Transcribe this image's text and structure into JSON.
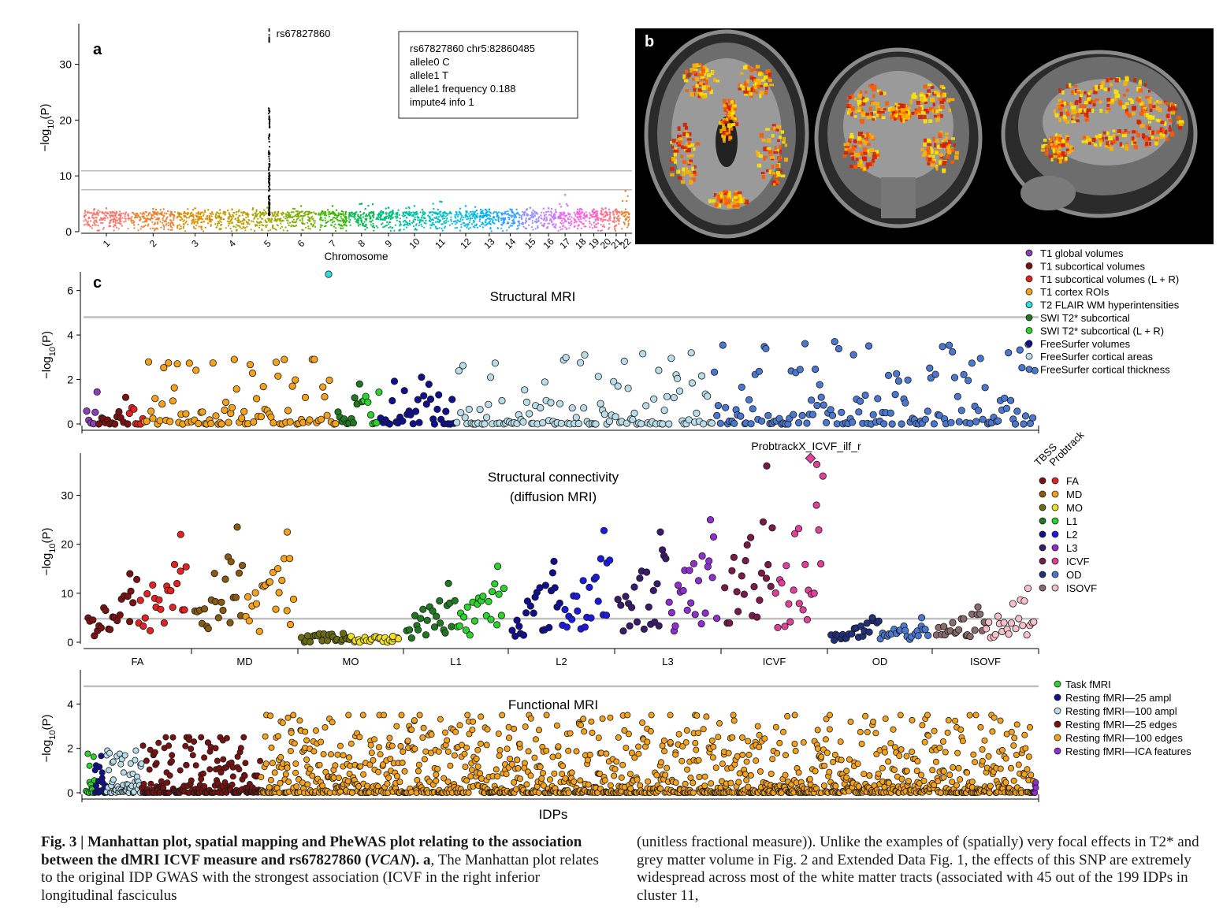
{
  "figure": {
    "panel_labels": [
      "a",
      "b",
      "c"
    ],
    "brain_colors": {
      "background": "#000000",
      "hot": [
        "#ffe600",
        "#ffb000",
        "#ff5a00",
        "#d81e00"
      ]
    }
  },
  "caption": {
    "left_lead": "Fig. 3 | Manhattan plot, spatial mapping and PheWAS plot relating to the association between the dMRI ICVF measure and rs67827860 (",
    "left_gene": "VCAN",
    "left_lead_end": ").",
    "left_panel": " a",
    "left_body": ", The Manhattan plot relates to the original IDP GWAS with the strongest association (ICVF in the right inferior longitudinal fasciculus",
    "right_body": "(unitless fractional measure)). Unlike the examples of (spatially) very focal effects in T2* and grey matter volume in Fig. 2 and Extended Data Fig. 1, the effects of this SNP are extremely widespread across most of the white matter tracts (associated with 45 out of the 199 IDPs in cluster 11,"
  },
  "chart_data": [
    {
      "type": "scatter",
      "panel": "a",
      "name": "manhattan",
      "xlabel": "Chromosome",
      "ylabel": "−log10(P)",
      "ylim": [
        0,
        37
      ],
      "yticks": [
        0,
        10,
        20,
        30
      ],
      "thresholds": [
        7.5,
        10.9
      ],
      "categories": [
        "1",
        "2",
        "3",
        "4",
        "5",
        "6",
        "7",
        "8",
        "9",
        "10",
        "11",
        "12",
        "13",
        "14",
        "15",
        "16",
        "17",
        "18",
        "19",
        "20",
        "21",
        "22"
      ],
      "category_colors": [
        "#f8766d",
        "#ea8331",
        "#d89000",
        "#c09b00",
        "#a3a500",
        "#7cae00",
        "#39b600",
        "#00bb4e",
        "#00bf7d",
        "#00c1a3",
        "#00bfc4",
        "#00bae0",
        "#00b0f6",
        "#35a2ff",
        "#9590ff",
        "#c77cff",
        "#e76bf3",
        "#fa62db",
        "#ff62bc",
        "#ff6c91",
        "#f8766d",
        "#ea8331"
      ],
      "background_max": [
        4.2,
        4.1,
        4.2,
        4.0,
        4.3,
        4.6,
        4.6,
        5.0,
        4.3,
        4.6,
        5.4,
        4.6,
        4.0,
        4.0,
        4.3,
        4.2,
        6.6,
        4.1,
        4.0,
        4.2,
        4.0,
        7.3
      ],
      "peak": {
        "chromosome": "5",
        "snp": "rs67827860",
        "max": 36.3,
        "bulk_top": 22.5
      },
      "annotation_lines": [
        "rs67827860 chr5:82860485",
        "allele0 C",
        "allele1 T",
        "allele1 frequency 0.188",
        "impute4 info 1"
      ],
      "peak_label": "rs67827860"
    },
    {
      "type": "scatter",
      "panel": "c",
      "name": "structural-mri",
      "title": "Structural MRI",
      "ylabel": "−log10(P)",
      "ylim": [
        0,
        6.2
      ],
      "yticks": [
        0,
        2,
        4,
        6
      ],
      "threshold": 4.8,
      "outlier": {
        "group": "T2 FLAIR WM hyperintensities",
        "value": 6.5
      },
      "legend": [
        {
          "name": "T1 global volumes",
          "color": "#8b3fb8"
        },
        {
          "name": "T1 subcortical volumes",
          "color": "#7a1212"
        },
        {
          "name": "T1 subcortical volumes (L + R)",
          "color": "#e52222"
        },
        {
          "name": "T1 cortex ROIs",
          "color": "#f5a21a"
        },
        {
          "name": "T2 FLAIR WM hyperintensities",
          "color": "#2fe0e0"
        },
        {
          "name": "SWI T2* subcortical",
          "color": "#1f7a1f"
        },
        {
          "name": "SWI T2* subcortical (L + R)",
          "color": "#2ad42a"
        },
        {
          "name": "FreeSurfer volumes",
          "color": "#10108f"
        },
        {
          "name": "FreeSurfer cortical areas",
          "color": "#b8dce8"
        },
        {
          "name": "FreeSurfer cortical thickness",
          "color": "#4a78d0"
        }
      ],
      "groups": [
        {
          "color": "#8b3fb8",
          "n": 6,
          "max": 2.2
        },
        {
          "color": "#7a1212",
          "n": 14,
          "max": 1.8
        },
        {
          "color": "#e52222",
          "n": 7,
          "max": 1.2
        },
        {
          "color": "#f5a21a",
          "n": 90,
          "max": 2.9
        },
        {
          "color": "#1f7a1f",
          "n": 12,
          "max": 1.8
        },
        {
          "color": "#2ad42a",
          "n": 8,
          "max": 2.2
        },
        {
          "color": "#10108f",
          "n": 35,
          "max": 2.4
        },
        {
          "color": "#b8dce8",
          "n": 120,
          "max": 3.2
        },
        {
          "color": "#4a78d0",
          "n": 150,
          "max": 3.7
        }
      ]
    },
    {
      "type": "scatter",
      "panel": "c",
      "name": "structural-connectivity",
      "title_lines": [
        "Structural connectivity",
        "(diffusion MRI)"
      ],
      "ylabel": "−log10(P)",
      "ylim": [
        0,
        37
      ],
      "yticks": [
        0,
        10,
        20,
        30
      ],
      "threshold": 4.8,
      "top_label": "ProbtrackX_ICVF_ilf_r",
      "top_value": 36.3,
      "legend_headers": [
        "TBSS",
        "Probtrack"
      ],
      "categories": [
        "FA",
        "MD",
        "MO",
        "L1",
        "L2",
        "L3",
        "ICVF",
        "OD",
        "ISOVF"
      ],
      "colors_tbss": [
        "#7a1212",
        "#8a5a10",
        "#6b6b10",
        "#1f7a1f",
        "#10108f",
        "#3a1a6a",
        "#7a1a4a",
        "#20307a",
        "#8a6a6a"
      ],
      "colors_probtrack": [
        "#e52222",
        "#f5a21a",
        "#f0e020",
        "#2ad42a",
        "#1a1ae0",
        "#8f2fd0",
        "#e0409a",
        "#4a78d0",
        "#f5c0c8"
      ],
      "tbss_max": [
        14,
        23.5,
        1.8,
        12,
        16.5,
        22.5,
        36,
        5,
        7.2
      ],
      "probtrack_max": [
        22,
        22.5,
        1.2,
        15.5,
        22.8,
        25,
        36.3,
        5,
        11
      ]
    },
    {
      "type": "scatter",
      "panel": "c",
      "name": "functional-mri",
      "title": "Functional MRI",
      "xlabel": "IDPs",
      "ylabel": "−log10(P)",
      "ylim": [
        0,
        4.9
      ],
      "yticks": [
        0,
        2,
        4
      ],
      "threshold": 4.8,
      "legend": [
        {
          "name": "Task fMRI",
          "color": "#2ad42a"
        },
        {
          "name": "Resting fMRI—25 ampl",
          "color": "#10108f"
        },
        {
          "name": "Resting fMRI—100 ampl",
          "color": "#b8dce8"
        },
        {
          "name": "Resting fMRI—25 edges",
          "color": "#7a1212"
        },
        {
          "name": "Resting fMRI—100 edges",
          "color": "#f5a21a"
        },
        {
          "name": "Resting fMRI—ICA features",
          "color": "#8f2fd0"
        }
      ],
      "groups": [
        {
          "color": "#2ad42a",
          "n": 14,
          "max": 1.8
        },
        {
          "color": "#10108f",
          "n": 20,
          "max": 2.5
        },
        {
          "color": "#b8dce8",
          "n": 60,
          "max": 1.9
        },
        {
          "color": "#7a1212",
          "n": 200,
          "max": 2.5
        },
        {
          "color": "#f5a21a",
          "n": 1300,
          "max": 3.5
        },
        {
          "color": "#8f2fd0",
          "n": 6,
          "max": 0.5
        }
      ]
    }
  ]
}
